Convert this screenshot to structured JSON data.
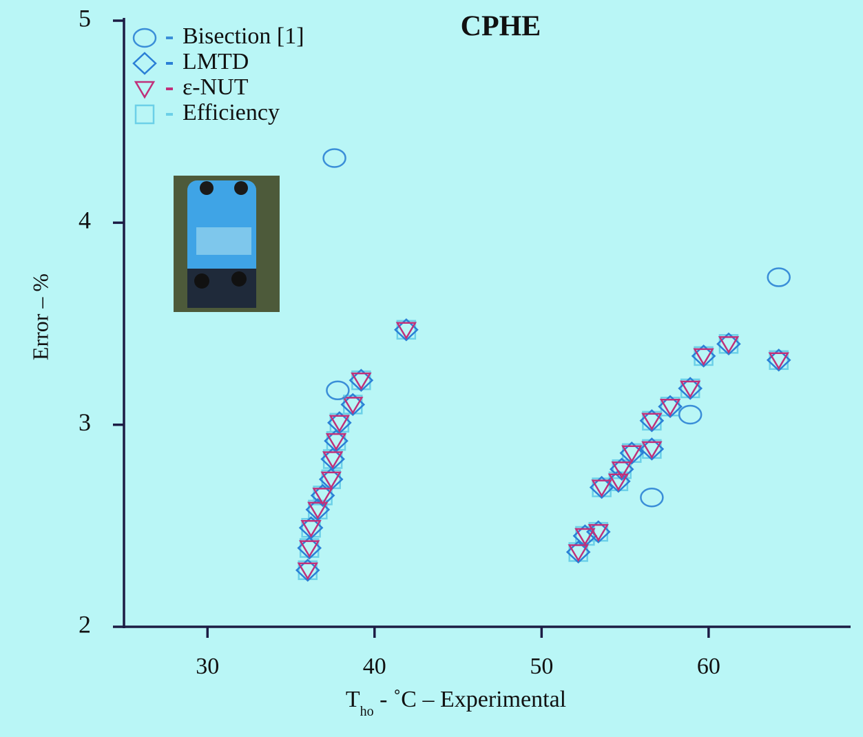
{
  "chart_data": {
    "type": "scatter",
    "title": "CPHE",
    "y_label": "Error – %",
    "x_label_parts": [
      "T",
      "ho",
      " - ˚C – Experimental"
    ],
    "xlim": [
      25,
      68.5
    ],
    "ylim": [
      2,
      5
    ],
    "xticks": [
      30,
      40,
      50,
      60
    ],
    "yticks": [
      2,
      3,
      4,
      5
    ],
    "legend": "upper-left",
    "series": [
      {
        "name": "Bisection [1]",
        "marker": "circle",
        "color": "#3a8ed8",
        "x": [
          37.6,
          64.2,
          37.8,
          58.9,
          56.6
        ],
        "values": [
          4.32,
          3.73,
          3.17,
          3.05,
          2.64
        ]
      },
      {
        "name": "LMTD",
        "marker": "diamond",
        "color": "#2a7fd6",
        "x": [
          36.0,
          36.1,
          36.2,
          36.6,
          36.9,
          37.4,
          37.5,
          37.7,
          37.9,
          38.7,
          39.2,
          41.9,
          52.2,
          52.6,
          53.4,
          53.6,
          54.6,
          54.8,
          55.4,
          56.6,
          56.6,
          57.7,
          58.9,
          59.7,
          61.2,
          64.2
        ],
        "values": [
          2.28,
          2.39,
          2.49,
          2.58,
          2.65,
          2.73,
          2.83,
          2.92,
          3.01,
          3.1,
          3.22,
          3.47,
          2.37,
          2.45,
          2.47,
          2.69,
          2.72,
          2.78,
          2.86,
          2.88,
          3.02,
          3.09,
          3.18,
          3.34,
          3.4,
          3.32
        ]
      },
      {
        "name": "ε-NUT",
        "marker": "triangle",
        "color": "#c0307a",
        "x": [
          36.0,
          36.1,
          36.2,
          36.6,
          36.9,
          37.4,
          37.5,
          37.7,
          37.9,
          38.7,
          39.2,
          41.9,
          52.2,
          52.6,
          53.4,
          53.6,
          54.6,
          54.8,
          55.4,
          56.6,
          56.6,
          57.7,
          58.9,
          59.7,
          61.2,
          64.2
        ],
        "values": [
          2.28,
          2.39,
          2.49,
          2.58,
          2.65,
          2.73,
          2.83,
          2.92,
          3.01,
          3.1,
          3.22,
          3.47,
          2.37,
          2.45,
          2.47,
          2.69,
          2.72,
          2.78,
          2.86,
          2.88,
          3.02,
          3.09,
          3.18,
          3.34,
          3.4,
          3.32
        ]
      },
      {
        "name": "Efficiency",
        "marker": "square",
        "color": "#6cd0e8",
        "x": [
          36.0,
          36.1,
          36.2,
          36.6,
          36.9,
          37.4,
          37.5,
          37.7,
          37.9,
          38.7,
          39.2,
          41.9,
          52.2,
          52.6,
          53.4,
          53.6,
          54.6,
          54.8,
          55.4,
          56.6,
          56.6,
          57.7,
          58.9,
          59.7,
          61.2,
          64.2
        ],
        "values": [
          2.28,
          2.39,
          2.49,
          2.58,
          2.65,
          2.73,
          2.83,
          2.92,
          3.01,
          3.1,
          3.22,
          3.47,
          2.37,
          2.45,
          2.47,
          2.69,
          2.72,
          2.78,
          2.86,
          2.88,
          3.02,
          3.09,
          3.18,
          3.34,
          3.4,
          3.32
        ]
      }
    ]
  }
}
